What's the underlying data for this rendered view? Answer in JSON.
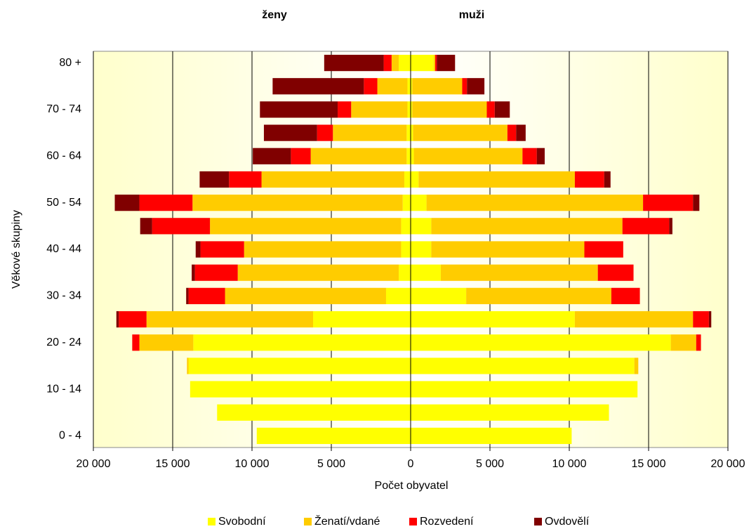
{
  "chart_data": {
    "type": "pyramid",
    "left_title": "ženy",
    "right_title": "muži",
    "xlabel": "Počet obyvatel",
    "ylabel": "Věkové skupiny",
    "categories": [
      "0 - 4",
      null,
      "10 - 14",
      null,
      "20 - 24",
      null,
      "30 - 34",
      null,
      "40 - 44",
      null,
      "50 - 54",
      null,
      "60 - 64",
      null,
      "70 - 74",
      null,
      "80 +"
    ],
    "xlim": [
      -20000,
      20000
    ],
    "xticks": [
      {
        "value": -20000,
        "label": "20 000"
      },
      {
        "value": -15000,
        "label": "15 000"
      },
      {
        "value": -10000,
        "label": "10 000"
      },
      {
        "value": -5000,
        "label": "5 000"
      },
      0,
      {
        "value": 5000,
        "label": "5 000"
      },
      {
        "value": 10000,
        "label": "10 000"
      },
      {
        "value": 15000,
        "label": "15 000"
      },
      {
        "value": 20000,
        "label": "20 000"
      }
    ],
    "grid": true,
    "series": [
      {
        "name": "Svobodní",
        "color": "#ffff00",
        "women": [
          -9700,
          -12200,
          -13900,
          -14000,
          -13700,
          -6150,
          -1550,
          -750,
          -600,
          -600,
          -500,
          -400,
          -250,
          -250,
          -200,
          -200,
          -750
        ],
        "men": [
          10150,
          12500,
          14300,
          14100,
          16400,
          10350,
          3500,
          1900,
          1300,
          1300,
          1000,
          500,
          200,
          150,
          100,
          100,
          1450
        ]
      },
      {
        "name": "Ženatí/vdané",
        "color": "#ffcc00",
        "women": [
          0,
          0,
          0,
          -100,
          -3400,
          -10500,
          -10150,
          -10150,
          -9900,
          -12050,
          -13250,
          -9000,
          -6050,
          -4650,
          -3550,
          -1900,
          -450
        ],
        "men": [
          0,
          0,
          0,
          250,
          1600,
          7450,
          9150,
          9900,
          9650,
          12050,
          13650,
          9850,
          6850,
          5950,
          4700,
          3150,
          100
        ]
      },
      {
        "name": "Rozvedení",
        "color": "#ff0000",
        "women": [
          0,
          0,
          0,
          0,
          -450,
          -1750,
          -2300,
          -2700,
          -2750,
          -3650,
          -3350,
          -2050,
          -1250,
          -1000,
          -850,
          -850,
          -500
        ],
        "men": [
          0,
          0,
          0,
          0,
          300,
          1000,
          1800,
          2250,
          2450,
          2950,
          3150,
          1850,
          900,
          550,
          500,
          300,
          100
        ]
      },
      {
        "name": "Ovdovělí",
        "color": "#800000",
        "women": [
          0,
          0,
          0,
          0,
          0,
          -150,
          -150,
          -200,
          -300,
          -750,
          -1550,
          -1850,
          -2400,
          -3350,
          -4900,
          -5750,
          -3750
        ],
        "men": [
          0,
          0,
          0,
          0,
          0,
          150,
          0,
          0,
          0,
          200,
          400,
          400,
          500,
          600,
          950,
          1100,
          1150
        ]
      }
    ]
  }
}
